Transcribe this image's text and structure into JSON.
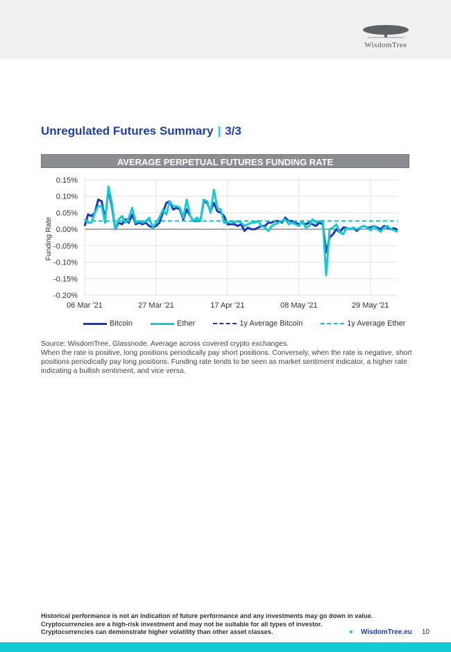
{
  "logo": {
    "text": "WisdomTree"
  },
  "header": {
    "title": "Unregulated Futures Summary",
    "separator": "|",
    "page_part": "3/3"
  },
  "chart_data": {
    "type": "line",
    "title": "AVERAGE PERPETUAL FUTURES FUNDING RATE",
    "ylabel": "Funding Rate",
    "xlabel": "",
    "ylim": [
      -0.2,
      0.15
    ],
    "yticks": [
      0.15,
      0.1,
      0.05,
      0.0,
      -0.05,
      -0.1,
      -0.15,
      -0.2
    ],
    "ytick_labels": [
      "0.15%",
      "0.10%",
      "0.05%",
      "0.00%",
      "-0.05%",
      "-0.10%",
      "-0.15%",
      "-0.20%"
    ],
    "xlim_days": [
      0,
      92
    ],
    "xticks_days": [
      0,
      21,
      42,
      63,
      84
    ],
    "xtick_labels": [
      "06 Mar '21",
      "27 Mar '21",
      "17 Apr '21",
      "08 May '21",
      "29 May '21"
    ],
    "grid": true,
    "legend_position": "bottom",
    "series": [
      {
        "name": "Bitcoin",
        "color": "#1a35c0",
        "style": "solid",
        "values": [
          0.01,
          0.045,
          0.04,
          0.05,
          0.09,
          0.085,
          0.03,
          0.12,
          0.07,
          0.0,
          0.02,
          0.015,
          0.03,
          0.02,
          0.045,
          0.015,
          0.02,
          0.015,
          0.02,
          0.01,
          0.005,
          0.01,
          0.02,
          0.05,
          0.08,
          0.085,
          0.06,
          0.065,
          0.06,
          0.03,
          0.06,
          0.04,
          0.025,
          0.025,
          0.025,
          0.085,
          0.08,
          0.055,
          0.08,
          0.055,
          0.05,
          0.04,
          0.015,
          0.015,
          0.015,
          0.01,
          0.015,
          -0.005,
          0.005,
          0.0,
          0.0,
          0.005,
          0.01,
          0.01,
          0.02,
          0.02,
          0.025,
          0.025,
          0.02,
          0.035,
          0.025,
          0.025,
          0.02,
          0.015,
          0.02,
          0.015,
          0.02,
          0.015,
          0.01,
          0.02,
          0.015,
          -0.07,
          -0.025,
          -0.015,
          0.0,
          -0.01,
          0.005,
          0.005,
          0.0,
          0.005,
          -0.005,
          0.005,
          0.01,
          0.005,
          0.005,
          0.01,
          0.005,
          0.0,
          0.01,
          0.005,
          0.0,
          0.003,
          -0.002
        ]
      },
      {
        "name": "Ether",
        "color": "#12cbd3",
        "style": "solid",
        "values": [
          0.03,
          0.02,
          0.02,
          0.05,
          0.07,
          0.07,
          0.02,
          0.13,
          0.08,
          0.0,
          0.03,
          0.04,
          0.02,
          0.035,
          0.065,
          0.02,
          0.025,
          0.02,
          0.025,
          0.035,
          0.005,
          0.02,
          0.035,
          0.06,
          0.045,
          0.085,
          0.07,
          0.07,
          0.065,
          0.035,
          0.09,
          0.04,
          0.025,
          0.035,
          0.025,
          0.09,
          0.085,
          0.05,
          0.12,
          0.065,
          0.06,
          0.02,
          0.02,
          0.025,
          0.02,
          0.025,
          0.02,
          0.01,
          0.015,
          0.02,
          0.02,
          0.025,
          0.01,
          0.005,
          -0.005,
          0.01,
          0.015,
          0.02,
          0.025,
          0.03,
          0.015,
          0.02,
          0.015,
          0.01,
          0.025,
          0.005,
          0.01,
          0.03,
          0.02,
          0.025,
          0.025,
          -0.14,
          0.0,
          0.005,
          0.015,
          -0.01,
          -0.015,
          0.005,
          0.0,
          0.005,
          0.0,
          0.005,
          0.01,
          0.005,
          -0.003,
          0.01,
          0.0,
          -0.007,
          0.005,
          0.01,
          0.0,
          -0.003,
          -0.008
        ]
      },
      {
        "name": "1y Average Bitcoin",
        "color": "#1a35c0",
        "style": "dashed",
        "value": 0.025
      },
      {
        "name": "1y Average Ether",
        "color": "#12cbd3",
        "style": "dashed",
        "value": 0.025
      }
    ]
  },
  "source": {
    "line1": "Source: WisdomTree, Glassnode. Average across covered crypto exchanges.",
    "line2": "When the rate is positive, long positions periodically pay short positions. Conversely, when the rate is negative, short positions periodically pay long positions. Funding rate tends to be seen as market sentiment indicator, a higher rate indicating a bullish sentiment, and vice versa."
  },
  "footer": {
    "disclaimer1": "Historical performance is not an indication of future performance and any investments may go down in value.",
    "disclaimer2": "Cryptocurrencies are a high-risk investment and may not be suitable for all types of investor.",
    "disclaimer3": "Cryptocurrencies can demonstrate higher volatility than other asset classes.",
    "link": "WisdomTree.eu",
    "page_number": "10"
  }
}
